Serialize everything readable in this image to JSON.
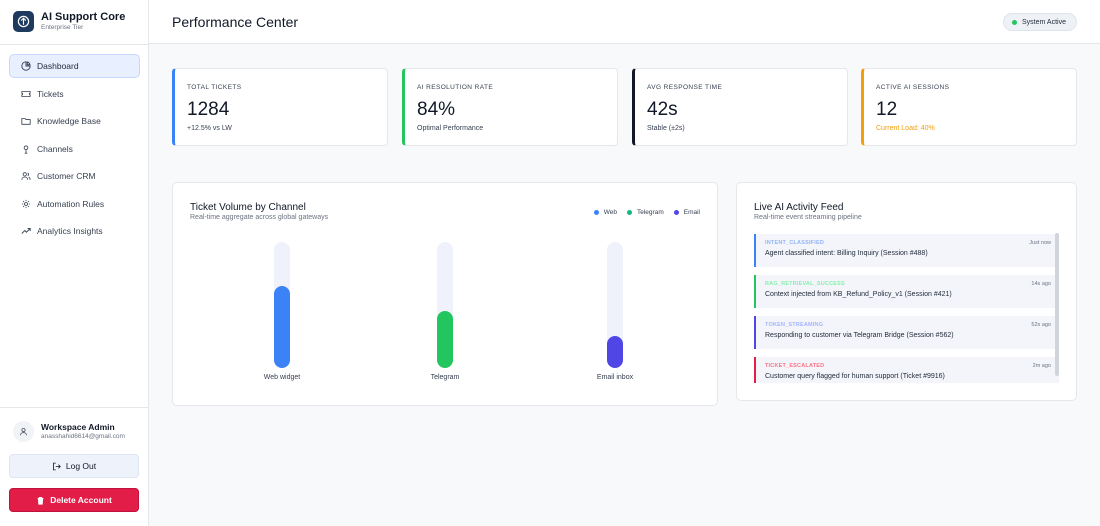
{
  "brand": {
    "name": "AI Support Core",
    "tier": "Enterprise Tier"
  },
  "sidebar": {
    "items": [
      {
        "label": "Dashboard",
        "icon": "dashboard-icon",
        "active": true
      },
      {
        "label": "Tickets",
        "icon": "ticket-icon",
        "active": false
      },
      {
        "label": "Knowledge Base",
        "icon": "folder-icon",
        "active": false
      },
      {
        "label": "Channels",
        "icon": "channels-icon",
        "active": false
      },
      {
        "label": "Customer CRM",
        "icon": "users-icon",
        "active": false
      },
      {
        "label": "Automation Rules",
        "icon": "gear-icon",
        "active": false
      },
      {
        "label": "Analytics Insights",
        "icon": "trend-icon",
        "active": false
      }
    ]
  },
  "user": {
    "name": "Workspace Admin",
    "email": "anasshahid6614@gmail.com"
  },
  "buttons": {
    "logout": "Log Out",
    "delete": "Delete Account"
  },
  "header": {
    "title": "Performance Center",
    "status": "System Active"
  },
  "stats": [
    {
      "label": "TOTAL TICKETS",
      "value": "1284",
      "sub": "+12.5% vs LW",
      "accent": "#3b82f6",
      "sub_color": "#374151"
    },
    {
      "label": "AI RESOLUTION RATE",
      "value": "84%",
      "sub": "Optimal Performance",
      "accent": "#22c55e",
      "sub_color": "#374151"
    },
    {
      "label": "AVG RESPONSE TIME",
      "value": "42s",
      "sub": "Stable (±2s)",
      "accent": "#111827",
      "sub_color": "#374151"
    },
    {
      "label": "ACTIVE AI SESSIONS",
      "value": "12",
      "sub": "Current Load: 40%",
      "accent": "#f59e0b",
      "sub_color": "#f59e0b"
    }
  ],
  "chart_card": {
    "title": "Ticket Volume by Channel",
    "subtitle": "Real-time aggregate across global gateways"
  },
  "chart_data": {
    "type": "bar",
    "categories": [
      "Web widget",
      "Telegram",
      "Email inbox"
    ],
    "values": [
      65,
      45,
      25
    ],
    "ylim": [
      0,
      100
    ],
    "legend": [
      {
        "name": "Web",
        "color": "#3b82f6"
      },
      {
        "name": "Telegram",
        "color": "#10b981"
      },
      {
        "name": "Email",
        "color": "#4f46e5"
      }
    ],
    "colors": [
      "#3b82f6",
      "#22c55e",
      "#4f46e5"
    ],
    "legend_position": "top-right",
    "grid": false
  },
  "feed": {
    "title": "Live AI Activity Feed",
    "subtitle": "Real-time event streaming pipeline",
    "items": [
      {
        "tag": "INTENT_CLASSIFIED",
        "time": "Just now",
        "text": "Agent classified intent: Billing Inquiry (Session #488)",
        "color": "#93b4f5",
        "border": "#3b82f6"
      },
      {
        "tag": "RAG_RETRIEVAL_SUCCESS",
        "time": "14s ago",
        "text": "Context injected from KB_Refund_Policy_v1 (Session #421)",
        "color": "#86efac",
        "border": "#22c55e"
      },
      {
        "tag": "TOKEN_STREAMING",
        "time": "52s ago",
        "text": "Responding to customer via Telegram Bridge (Session #562)",
        "color": "#a5b4fc",
        "border": "#4f46e5"
      },
      {
        "tag": "TICKET_ESCALATED",
        "time": "2m ago",
        "text": "Customer query flagged for human support (Ticket #9916)",
        "color": "#fb7185",
        "border": "#e11d48"
      }
    ]
  }
}
